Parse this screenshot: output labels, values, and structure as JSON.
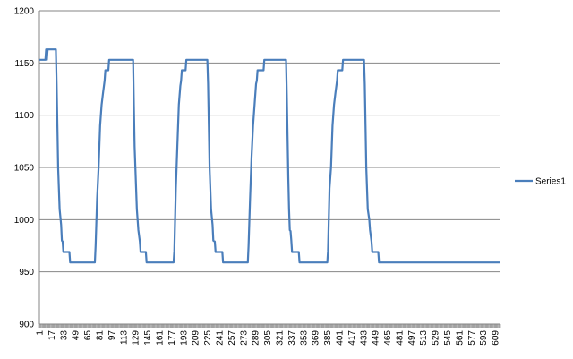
{
  "chart_data": {
    "type": "line",
    "title": "",
    "xlabel": "",
    "ylabel": "",
    "xlim": [
      1,
      616
    ],
    "ylim": [
      900,
      1200
    ],
    "y_ticks": [
      900,
      950,
      1000,
      1050,
      1100,
      1150,
      1200
    ],
    "x_tick_labels": [
      1,
      17,
      33,
      49,
      65,
      81,
      97,
      113,
      129,
      145,
      161,
      177,
      193,
      209,
      225,
      241,
      257,
      273,
      289,
      305,
      321,
      337,
      353,
      369,
      385,
      401,
      417,
      433,
      449,
      465,
      481,
      497,
      513,
      529,
      545,
      561,
      577,
      593,
      609
    ],
    "x_tick_label_orientation": "vertical",
    "grid": "horizontal major gridlines",
    "legend_position": "right",
    "series": [
      {
        "name": "Series1",
        "color": "#4a7ebb",
        "points": [
          [
            1,
            1153
          ],
          [
            9,
            1153
          ],
          [
            10,
            1163
          ],
          [
            11,
            1153
          ],
          [
            12,
            1163
          ],
          [
            20,
            1163
          ],
          [
            23,
            1163
          ],
          [
            24,
            1130
          ],
          [
            25,
            1090
          ],
          [
            26,
            1050
          ],
          [
            27,
            1030
          ],
          [
            28,
            1010
          ],
          [
            30,
            995
          ],
          [
            31,
            980
          ],
          [
            32,
            979
          ],
          [
            33,
            969
          ],
          [
            41,
            969
          ],
          [
            42,
            959
          ],
          [
            75,
            959
          ],
          [
            76,
            975
          ],
          [
            78,
            1020
          ],
          [
            80,
            1050
          ],
          [
            82,
            1090
          ],
          [
            84,
            1110
          ],
          [
            86,
            1122
          ],
          [
            88,
            1133
          ],
          [
            89,
            1143
          ],
          [
            93,
            1143
          ],
          [
            94,
            1153
          ],
          [
            126,
            1153
          ],
          [
            127,
            1110
          ],
          [
            128,
            1070
          ],
          [
            129,
            1050
          ],
          [
            130,
            1030
          ],
          [
            131,
            1010
          ],
          [
            133,
            990
          ],
          [
            135,
            979
          ],
          [
            136,
            969
          ],
          [
            143,
            969
          ],
          [
            144,
            959
          ],
          [
            180,
            959
          ],
          [
            181,
            970
          ],
          [
            183,
            1030
          ],
          [
            185,
            1070
          ],
          [
            187,
            1110
          ],
          [
            189,
            1128
          ],
          [
            190,
            1133
          ],
          [
            191,
            1143
          ],
          [
            196,
            1143
          ],
          [
            197,
            1153
          ],
          [
            225,
            1153
          ],
          [
            226,
            1130
          ],
          [
            227,
            1090
          ],
          [
            228,
            1050
          ],
          [
            229,
            1030
          ],
          [
            230,
            1010
          ],
          [
            232,
            995
          ],
          [
            233,
            980
          ],
          [
            235,
            979
          ],
          [
            236,
            969
          ],
          [
            245,
            969
          ],
          [
            246,
            959
          ],
          [
            279,
            959
          ],
          [
            280,
            975
          ],
          [
            282,
            1020
          ],
          [
            284,
            1060
          ],
          [
            286,
            1090
          ],
          [
            288,
            1110
          ],
          [
            290,
            1130
          ],
          [
            291,
            1133
          ],
          [
            292,
            1143
          ],
          [
            300,
            1143
          ],
          [
            301,
            1153
          ],
          [
            330,
            1153
          ],
          [
            331,
            1120
          ],
          [
            332,
            1080
          ],
          [
            333,
            1040
          ],
          [
            334,
            1010
          ],
          [
            335,
            990
          ],
          [
            336,
            989
          ],
          [
            337,
            980
          ],
          [
            338,
            969
          ],
          [
            347,
            969
          ],
          [
            348,
            959
          ],
          [
            385,
            959
          ],
          [
            386,
            970
          ],
          [
            388,
            1030
          ],
          [
            390,
            1050
          ],
          [
            392,
            1090
          ],
          [
            394,
            1110
          ],
          [
            396,
            1122
          ],
          [
            398,
            1133
          ],
          [
            399,
            1143
          ],
          [
            405,
            1143
          ],
          [
            406,
            1153
          ],
          [
            434,
            1153
          ],
          [
            435,
            1130
          ],
          [
            436,
            1090
          ],
          [
            437,
            1050
          ],
          [
            438,
            1030
          ],
          [
            439,
            1010
          ],
          [
            441,
            1000
          ],
          [
            442,
            990
          ],
          [
            444,
            979
          ],
          [
            445,
            969
          ],
          [
            453,
            969
          ],
          [
            454,
            959
          ],
          [
            616,
            959
          ]
        ]
      }
    ]
  }
}
